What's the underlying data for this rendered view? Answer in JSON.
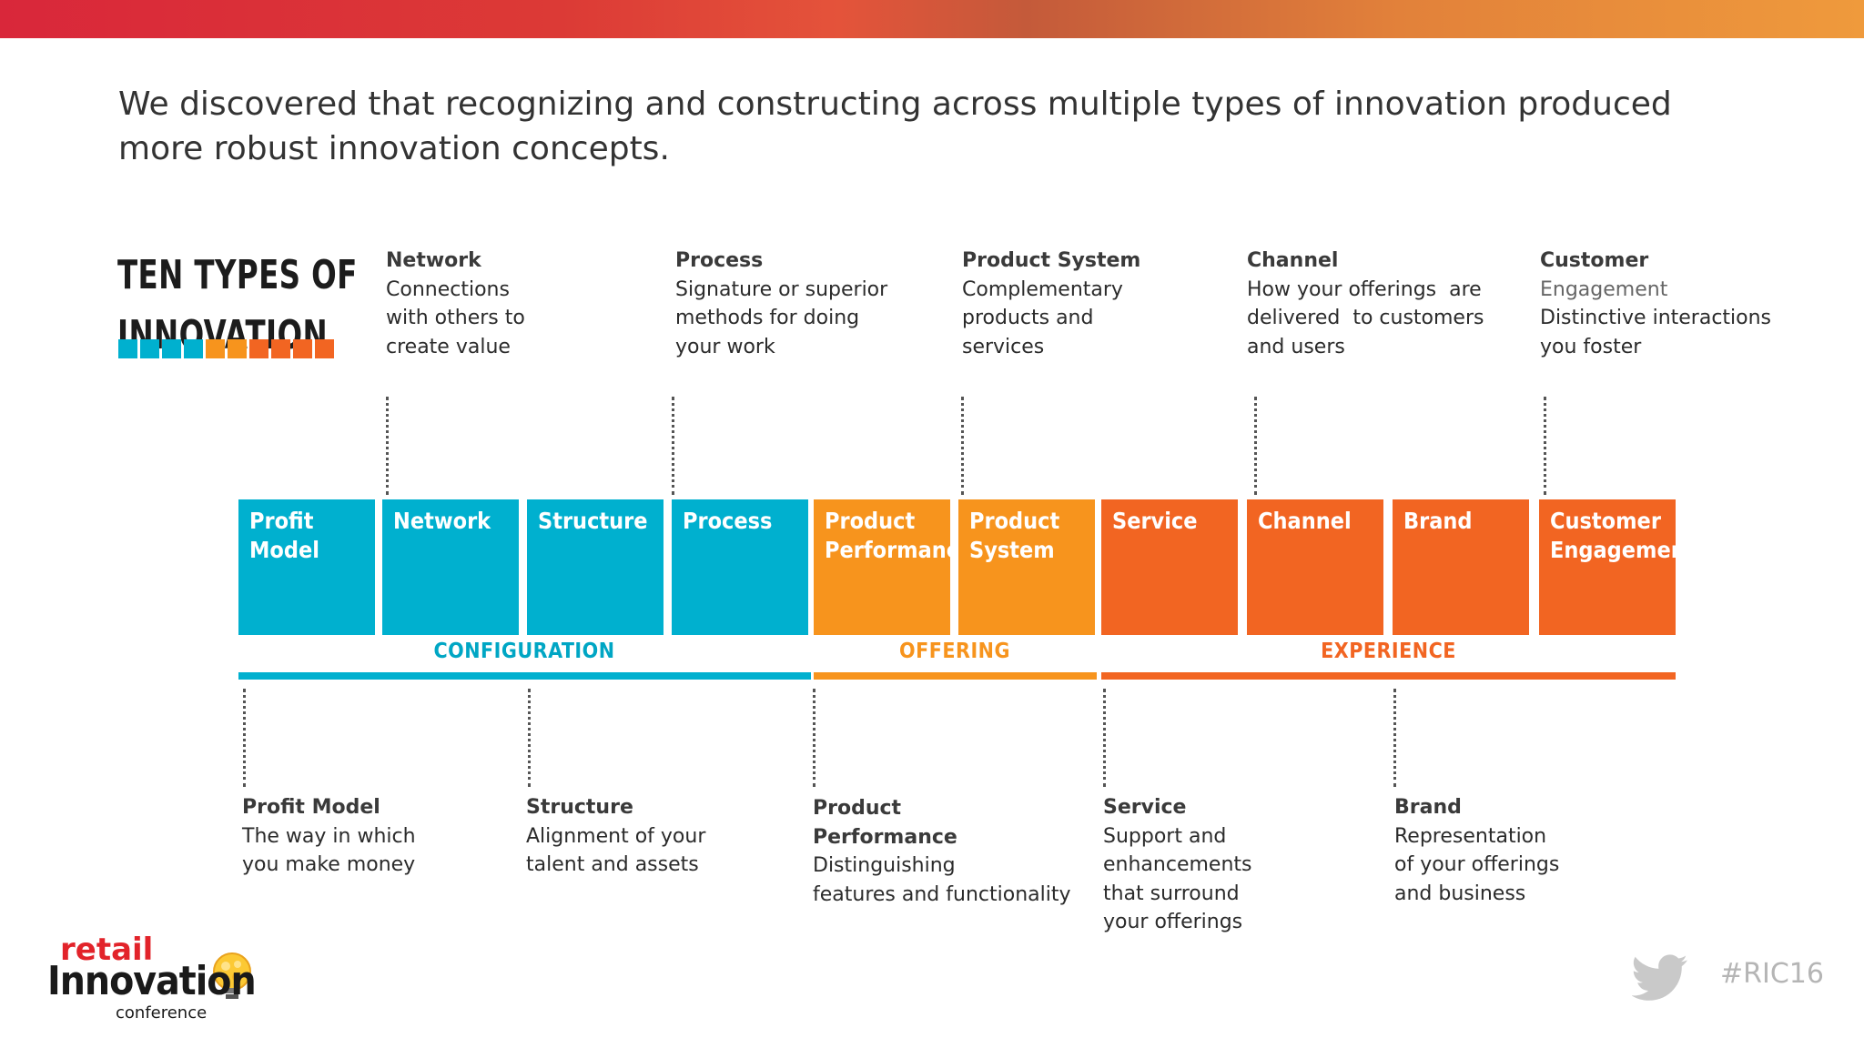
{
  "headline": "We discovered that recognizing and constructing across multiple types of innovation produced more robust innovation concepts.",
  "logo": {
    "line1": "TEN TYPES OF",
    "line2": "INNOVATION",
    "square_colors": [
      "#00b0cf",
      "#00b0cf",
      "#00b0cf",
      "#00b0cf",
      "#f7941d",
      "#f7941d",
      "#f26522",
      "#f26522",
      "#f26522",
      "#f26522"
    ]
  },
  "top_descriptions": [
    {
      "title": "Network",
      "lines": [
        "Connections",
        "with others to",
        "create value"
      ]
    },
    {
      "title": "Process",
      "lines": [
        "Signature or superior",
        "methods for doing",
        "your work"
      ]
    },
    {
      "title": "Product System",
      "lines": [
        "Complementary",
        "products and",
        "services"
      ]
    },
    {
      "title": "Channel",
      "lines": [
        "How your offerings  are",
        "delivered  to customers",
        "and users"
      ]
    },
    {
      "title": "Customer",
      "lines": [
        "Engagement",
        "Distinctive interactions",
        "you foster"
      ]
    }
  ],
  "tiles": [
    {
      "line1": "Profit",
      "line2": "Model",
      "group": "configuration"
    },
    {
      "line1": "Network",
      "line2": "",
      "group": "configuration"
    },
    {
      "line1": "Structure",
      "line2": "",
      "group": "configuration"
    },
    {
      "line1": "Process",
      "line2": "",
      "group": "configuration"
    },
    {
      "line1": "Product",
      "line2": "Performance",
      "group": "offering"
    },
    {
      "line1": "Product",
      "line2": "System",
      "group": "offering"
    },
    {
      "line1": "Service",
      "line2": "",
      "group": "experience"
    },
    {
      "line1": "Channel",
      "line2": "",
      "group": "experience"
    },
    {
      "line1": "Brand",
      "line2": "",
      "group": "experience"
    },
    {
      "line1": "Customer",
      "line2": "Engagement",
      "group": "experience"
    }
  ],
  "groups": {
    "configuration": {
      "label": "CONFIGURATION",
      "color": "#00b0cf"
    },
    "offering": {
      "label": "OFFERING",
      "color": "#f7941d"
    },
    "experience": {
      "label": "EXPERIENCE",
      "color": "#f26522"
    }
  },
  "bottom_descriptions": [
    {
      "title": "Profit Model",
      "lines": [
        "The way in which",
        "you make money"
      ]
    },
    {
      "title": "Structure",
      "lines": [
        "Alignment of your",
        "talent and assets"
      ]
    },
    {
      "title": "Product",
      "title2": "Performance",
      "lines": [
        "Distinguishing",
        "features and functionality"
      ]
    },
    {
      "title": "Service",
      "lines": [
        "Support and",
        "enhancements",
        "that surround",
        "your offerings"
      ]
    },
    {
      "title": "Brand",
      "lines": [
        "Representation",
        "of your offerings",
        "and business"
      ]
    }
  ],
  "footer": {
    "brand_top": "retail",
    "brand_main": "Innovation",
    "brand_sub": "conference",
    "hashtag": "#RIC16"
  }
}
